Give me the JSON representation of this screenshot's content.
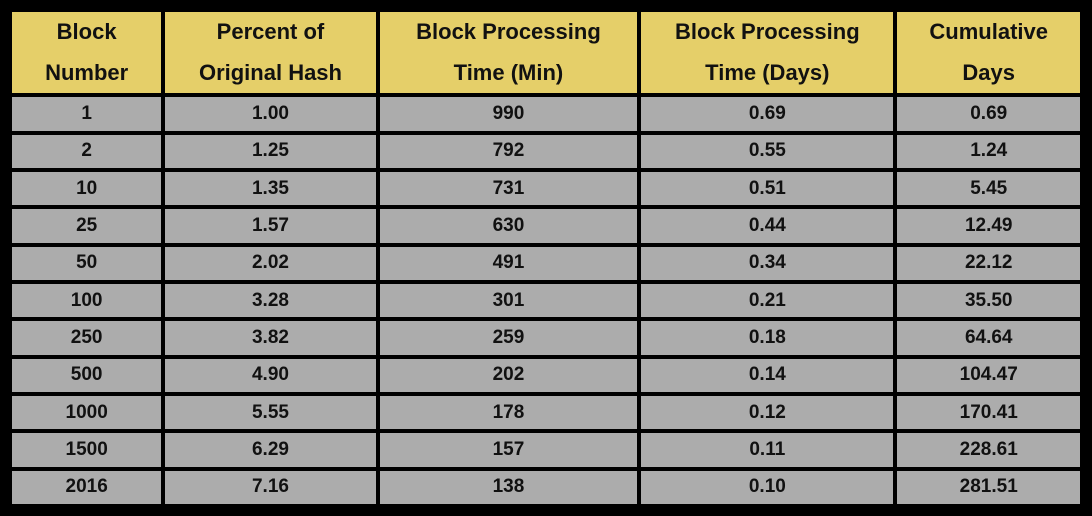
{
  "colors": {
    "header_bg": "#E5CF69",
    "cell_bg": "#ACACAC",
    "border": "#000000",
    "text": "#111111",
    "page_bg": "#000000"
  },
  "table": {
    "headers": [
      {
        "line1": "Block",
        "line2": "Number"
      },
      {
        "line1": "Percent of",
        "line2": "Original Hash"
      },
      {
        "line1": "Block Processing",
        "line2": "Time (Min)"
      },
      {
        "line1": "Block Processing",
        "line2": "Time (Days)"
      },
      {
        "line1": "Cumulative",
        "line2": "Days"
      }
    ],
    "rows": [
      [
        "1",
        "1.00",
        "990",
        "0.69",
        "0.69"
      ],
      [
        "2",
        "1.25",
        "792",
        "0.55",
        "1.24"
      ],
      [
        "10",
        "1.35",
        "731",
        "0.51",
        "5.45"
      ],
      [
        "25",
        "1.57",
        "630",
        "0.44",
        "12.49"
      ],
      [
        "50",
        "2.02",
        "491",
        "0.34",
        "22.12"
      ],
      [
        "100",
        "3.28",
        "301",
        "0.21",
        "35.50"
      ],
      [
        "250",
        "3.82",
        "259",
        "0.18",
        "64.64"
      ],
      [
        "500",
        "4.90",
        "202",
        "0.14",
        "104.47"
      ],
      [
        "1000",
        "5.55",
        "178",
        "0.12",
        "170.41"
      ],
      [
        "1500",
        "6.29",
        "157",
        "0.11",
        "228.61"
      ],
      [
        "2016",
        "7.16",
        "138",
        "0.10",
        "281.51"
      ]
    ]
  },
  "chart_data": {
    "type": "table",
    "title": "",
    "columns": [
      "Block Number",
      "Percent of Original Hash",
      "Block Processing Time (Min)",
      "Block Processing Time (Days)",
      "Cumulative Days"
    ],
    "rows": [
      [
        1,
        1.0,
        990,
        0.69,
        0.69
      ],
      [
        2,
        1.25,
        792,
        0.55,
        1.24
      ],
      [
        10,
        1.35,
        731,
        0.51,
        5.45
      ],
      [
        25,
        1.57,
        630,
        0.44,
        12.49
      ],
      [
        50,
        2.02,
        491,
        0.34,
        22.12
      ],
      [
        100,
        3.28,
        301,
        0.21,
        35.5
      ],
      [
        250,
        3.82,
        259,
        0.18,
        64.64
      ],
      [
        500,
        4.9,
        202,
        0.14,
        104.47
      ],
      [
        1000,
        5.55,
        178,
        0.12,
        170.41
      ],
      [
        1500,
        6.29,
        157,
        0.11,
        228.61
      ],
      [
        2016,
        7.16,
        138,
        0.1,
        281.51
      ]
    ],
    "layout_hints": {
      "header_background": "#E5CF69",
      "cell_background": "#ACACAC",
      "grid": true,
      "text_bold": true
    }
  }
}
